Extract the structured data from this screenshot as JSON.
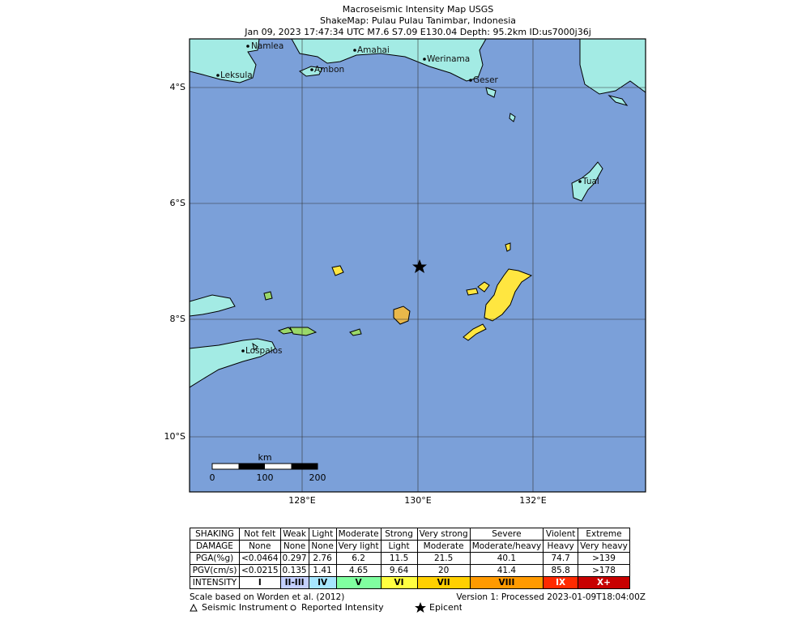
{
  "header": {
    "title": "Macroseismic Intensity Map USGS",
    "subtitle": "ShakeMap: Pulau Pulau Tanimbar, Indonesia",
    "event": "Jan 09, 2023 17:47:34 UTC M7.6 S7.09 E130.04 Depth: 95.2km ID:us7000j36j"
  },
  "map": {
    "lat_labels": [
      "4°S",
      "6°S",
      "8°S",
      "10°S"
    ],
    "lon_labels": [
      "128°E",
      "130°E",
      "132°E"
    ],
    "cities": [
      "Namlea",
      "Leksula",
      "Ambon",
      "Amahai",
      "Werinama",
      "Geser",
      "Tual",
      "Lospalos"
    ],
    "scale_bar": {
      "unit": "km",
      "labels": [
        "0",
        "100",
        "200"
      ]
    }
  },
  "table": {
    "rows": [
      [
        "SHAKING",
        "Not felt",
        "Weak",
        "Light",
        "Moderate",
        "Strong",
        "Very strong",
        "Severe",
        "Violent",
        "Extreme"
      ],
      [
        "DAMAGE",
        "None",
        "None",
        "None",
        "Very light",
        "Light",
        "Moderate",
        "Moderate/heavy",
        "Heavy",
        "Very heavy"
      ],
      [
        "PGA(%g)",
        "<0.0464",
        "0.297",
        "2.76",
        "6.2",
        "11.5",
        "21.5",
        "40.1",
        "74.7",
        ">139"
      ],
      [
        "PGV(cm/s)",
        "<0.0215",
        "0.135",
        "1.41",
        "4.65",
        "9.64",
        "20",
        "41.4",
        "85.8",
        ">178"
      ],
      [
        "INTENSITY",
        "I",
        "II-III",
        "IV",
        "V",
        "VI",
        "VII",
        "VIII",
        "IX",
        "X+"
      ]
    ]
  },
  "footer": {
    "scale_note": "Scale based on Worden et al. (2012)",
    "version": "Version 1: Processed 2023-01-09T18:04:00Z",
    "legend": [
      "Seismic Instrument",
      "Reported Intensity",
      "Epicenter"
    ]
  }
}
